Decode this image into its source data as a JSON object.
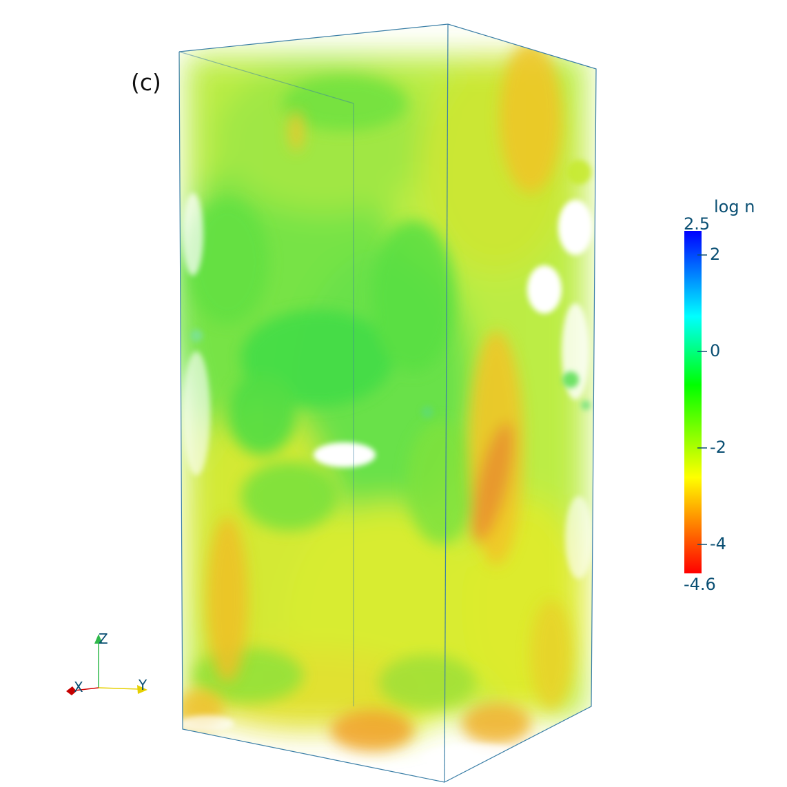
{
  "panel_label": "(c)",
  "colorbar": {
    "title": "log n",
    "max_label": "2.5",
    "min_label": "-4.6",
    "max": 2.5,
    "min": -4.6,
    "ticks": [
      {
        "value": 2,
        "label": "2"
      },
      {
        "value": 0,
        "label": "0"
      },
      {
        "value": -2,
        "label": "-2"
      },
      {
        "value": -4,
        "label": "-4"
      }
    ],
    "colors": [
      "#0000ff",
      "#00ffff",
      "#00ff00",
      "#ffff00",
      "#ff0000"
    ],
    "tick_color": "#0a4f73"
  },
  "axes_triad": {
    "x_label": "X",
    "y_label": "Y",
    "z_label": "Z",
    "x_color": "#d40000",
    "y_color": "#e6d000",
    "z_color": "#2fb84a"
  },
  "volume_colors": {
    "green": "#5fe23a",
    "yellow": "#d6ef1e",
    "orange": "#f2a22a",
    "box_edge": "#3a7ea6"
  }
}
